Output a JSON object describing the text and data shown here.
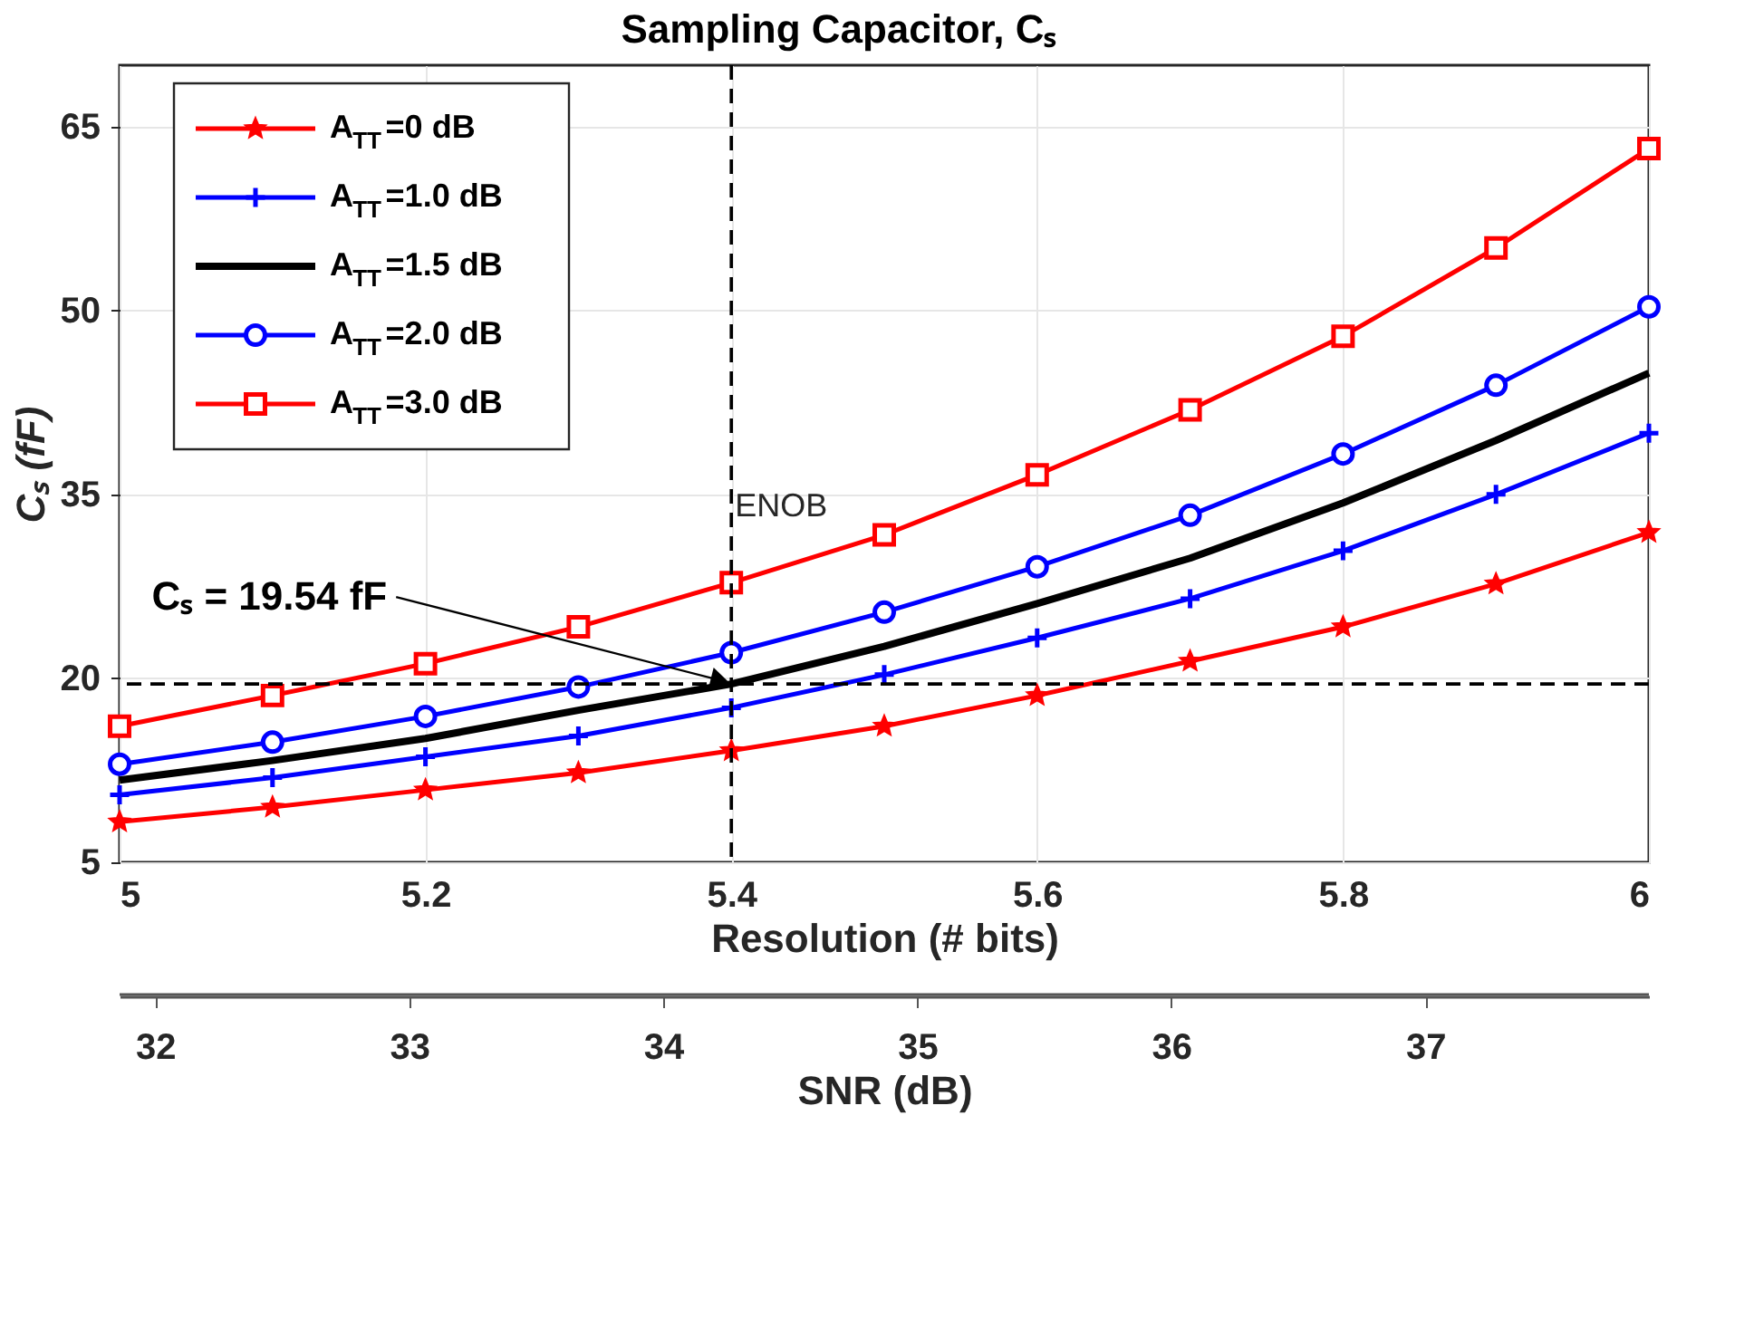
{
  "chart_data": {
    "type": "line",
    "title": "Sampling Capacitor, Cₛ",
    "xlabel": "Resolution (# bits)",
    "ylabel": "Cₛ (fF)",
    "x2label": "SNR (dB)",
    "x": [
      5.0,
      5.1,
      5.2,
      5.3,
      5.4,
      5.5,
      5.6,
      5.7,
      5.8,
      5.9,
      6.0
    ],
    "series": [
      {
        "name": "A$_{TT}$=0 dB",
        "color": "#ff0000",
        "marker": "star",
        "values": [
          8.3,
          9.5,
          10.9,
          12.3,
          14.1,
          16.1,
          18.6,
          21.4,
          24.2,
          27.7,
          31.9
        ]
      },
      {
        "name": "A$_{TT}$=1.0 dB",
        "color": "#0000ff",
        "marker": "cross",
        "values": [
          10.5,
          11.9,
          13.6,
          15.3,
          17.6,
          20.3,
          23.3,
          26.5,
          30.4,
          35.0,
          40.0
        ]
      },
      {
        "name": "A$_{TT}$=1.5 dB",
        "color": "#000000",
        "marker": "none",
        "values": [
          11.7,
          13.3,
          15.1,
          17.4,
          19.54,
          22.6,
          26.1,
          29.8,
          34.3,
          39.4,
          44.9
        ]
      },
      {
        "name": "A$_{TT}$=2.0 dB",
        "color": "#0000ff",
        "marker": "circle",
        "values": [
          13.0,
          14.8,
          16.9,
          19.3,
          22.1,
          25.4,
          29.1,
          33.3,
          38.3,
          43.9,
          50.3
        ]
      },
      {
        "name": "A$_{TT}$=3.0 dB",
        "color": "#ff0000",
        "marker": "square",
        "values": [
          16.1,
          18.6,
          21.2,
          24.2,
          27.8,
          31.7,
          36.6,
          41.9,
          47.9,
          55.1,
          63.2
        ]
      }
    ],
    "xlim": [
      5,
      6
    ],
    "xticks": [
      5,
      5.2,
      5.4,
      5.6,
      5.8,
      6
    ],
    "ylim": [
      5,
      70
    ],
    "yticks": [
      5,
      20,
      35,
      50,
      65
    ],
    "x2lim": [
      31.86,
      37.88
    ],
    "x2ticks": [
      32,
      33,
      34,
      35,
      36,
      37
    ],
    "ref_lines": [
      {
        "axis": "x",
        "value": 5.4,
        "label": "ENOB",
        "line_style": "dashed",
        "color": "#000000"
      },
      {
        "axis": "y",
        "value": 19.54,
        "line_style": "dashed",
        "color": "#000000"
      }
    ],
    "annotations": [
      {
        "text": "Cₛ = 19.54 fF",
        "x": 5.4,
        "y": 19.54
      }
    ],
    "grid": true,
    "legend": "top left"
  }
}
